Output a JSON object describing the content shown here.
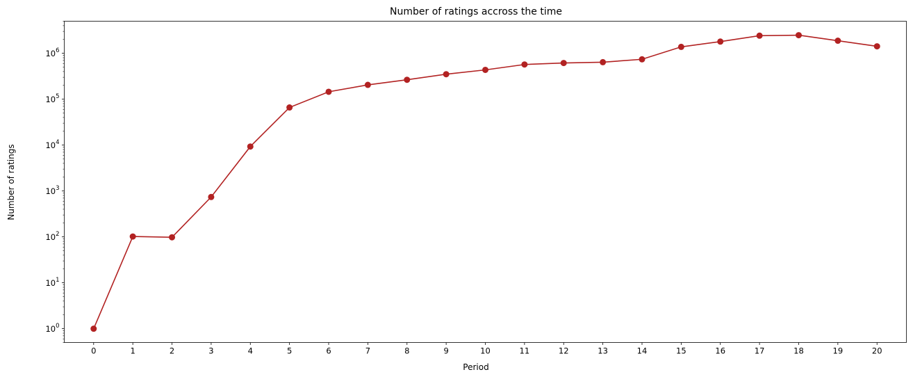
{
  "chart_data": {
    "type": "line",
    "title": "Number of ratings accross the time",
    "xlabel": "Period",
    "ylabel": "Number of ratings",
    "yscale": "log",
    "ylim": [
      0.5,
      5000000
    ],
    "xlim": [
      -0.75,
      20.75
    ],
    "grid": false,
    "legend": "none",
    "color": "#b22222",
    "x": [
      0,
      1,
      2,
      3,
      4,
      5,
      6,
      7,
      8,
      9,
      10,
      11,
      12,
      13,
      14,
      15,
      16,
      17,
      18,
      19,
      20
    ],
    "y": [
      1,
      102,
      98,
      740,
      9300,
      66000,
      145000,
      205000,
      265000,
      350000,
      435000,
      570000,
      615000,
      640000,
      740000,
      1380000,
      1800000,
      2420000,
      2480000,
      1880000,
      1420000
    ],
    "yticks": [
      {
        "base": "10",
        "exp": "0",
        "value": 1
      },
      {
        "base": "10",
        "exp": "1",
        "value": 10
      },
      {
        "base": "10",
        "exp": "2",
        "value": 100
      },
      {
        "base": "10",
        "exp": "3",
        "value": 1000
      },
      {
        "base": "10",
        "exp": "4",
        "value": 10000
      },
      {
        "base": "10",
        "exp": "5",
        "value": 100000
      },
      {
        "base": "10",
        "exp": "6",
        "value": 1000000
      }
    ],
    "xticks": [
      "0",
      "1",
      "2",
      "3",
      "4",
      "5",
      "6",
      "7",
      "8",
      "9",
      "10",
      "11",
      "12",
      "13",
      "14",
      "15",
      "16",
      "17",
      "18",
      "19",
      "20"
    ]
  }
}
